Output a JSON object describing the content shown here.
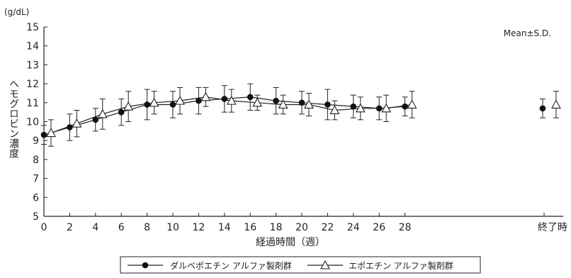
{
  "chart_data": {
    "type": "line",
    "unit_label": "(g/dL)",
    "ylabel": "ヘモグロビン濃度",
    "xlabel": "経過時間（週）",
    "annotation": "Mean±S.D.",
    "ylim": [
      5,
      15
    ],
    "yticks": [
      5,
      6,
      7,
      8,
      9,
      10,
      11,
      12,
      13,
      14,
      15
    ],
    "xticks": [
      "0",
      "2",
      "4",
      "6",
      "8",
      "10",
      "12",
      "14",
      "16",
      "18",
      "20",
      "22",
      "24",
      "26",
      "28",
      "終了時"
    ],
    "x_end_label": "終了時",
    "series": [
      {
        "name": "ダルベポエチン アルファ製剤群",
        "marker": "filled-circle",
        "x": [
          0,
          2,
          4,
          6,
          8,
          10,
          12,
          14,
          16,
          18,
          20,
          22,
          24,
          26,
          28
        ],
        "y": [
          9.3,
          9.7,
          10.1,
          10.5,
          10.9,
          10.9,
          11.1,
          11.2,
          11.3,
          11.1,
          11.0,
          10.9,
          10.8,
          10.7,
          10.8
        ],
        "sd": [
          0.5,
          0.7,
          0.6,
          0.7,
          0.8,
          0.7,
          0.7,
          0.7,
          0.7,
          0.7,
          0.6,
          0.8,
          0.6,
          0.6,
          0.5
        ],
        "end_value": 10.7,
        "end_sd": 0.5
      },
      {
        "name": "エポエチン アルファ製剤群",
        "marker": "open-triangle",
        "x": [
          0,
          2,
          4,
          6,
          8,
          10,
          12,
          14,
          16,
          18,
          20,
          22,
          24,
          26,
          28
        ],
        "y": [
          9.4,
          9.9,
          10.4,
          10.8,
          11.0,
          11.1,
          11.3,
          11.1,
          11.0,
          10.9,
          10.9,
          10.6,
          10.7,
          10.7,
          10.9
        ],
        "sd": [
          0.7,
          0.7,
          0.8,
          0.8,
          0.6,
          0.7,
          0.5,
          0.6,
          0.4,
          0.5,
          0.6,
          0.5,
          0.6,
          0.7,
          0.7
        ],
        "end_value": 10.9,
        "end_sd": 0.7
      }
    ]
  },
  "legend_items": [
    "ダルベポエチン アルファ製剤群",
    "エポエチン アルファ製剤群"
  ]
}
